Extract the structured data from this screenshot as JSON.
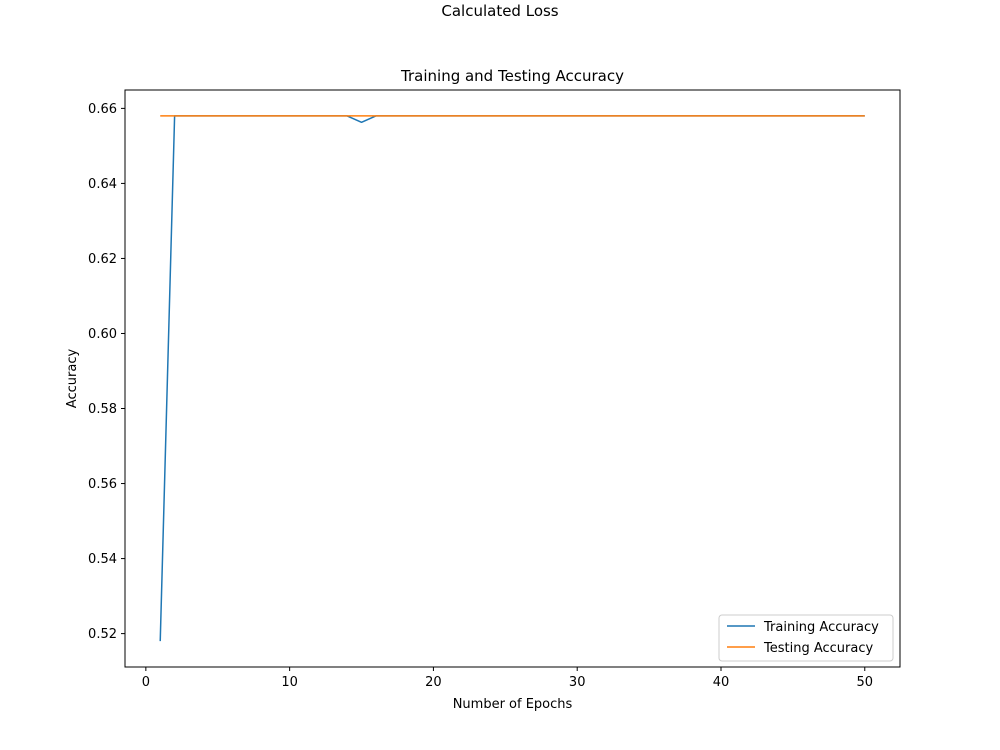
{
  "figure": {
    "suptitle": "Calculated Loss"
  },
  "chart_data": {
    "type": "line",
    "title": "Training and Testing Accuracy",
    "xlabel": "Number of Epochs",
    "ylabel": "Accuracy",
    "xlim": [
      -1.45,
      52.45
    ],
    "ylim": [
      0.5111,
      0.6649
    ],
    "xticks": [
      0,
      10,
      20,
      30,
      40,
      50
    ],
    "yticks": [
      0.52,
      0.54,
      0.56,
      0.58,
      0.6,
      0.62,
      0.64,
      0.66
    ],
    "ytick_labels": [
      "0.52",
      "0.54",
      "0.56",
      "0.58",
      "0.60",
      "0.62",
      "0.64",
      "0.66"
    ],
    "grid": false,
    "legend_position": "lower-right",
    "x": [
      1,
      2,
      3,
      4,
      5,
      6,
      7,
      8,
      9,
      10,
      11,
      12,
      13,
      14,
      15,
      16,
      17,
      18,
      19,
      20,
      21,
      22,
      23,
      24,
      25,
      26,
      27,
      28,
      29,
      30,
      31,
      32,
      33,
      34,
      35,
      36,
      37,
      38,
      39,
      40,
      41,
      42,
      43,
      44,
      45,
      46,
      47,
      48,
      49,
      50
    ],
    "series": [
      {
        "name": "Training Accuracy",
        "color": "#1f77b4",
        "values": [
          0.518,
          0.658,
          0.658,
          0.658,
          0.658,
          0.658,
          0.658,
          0.658,
          0.658,
          0.658,
          0.658,
          0.658,
          0.658,
          0.658,
          0.6563,
          0.658,
          0.658,
          0.658,
          0.658,
          0.658,
          0.658,
          0.658,
          0.658,
          0.658,
          0.658,
          0.658,
          0.658,
          0.658,
          0.658,
          0.658,
          0.658,
          0.658,
          0.658,
          0.658,
          0.658,
          0.658,
          0.658,
          0.658,
          0.658,
          0.658,
          0.658,
          0.658,
          0.658,
          0.658,
          0.658,
          0.658,
          0.658,
          0.658,
          0.658,
          0.658
        ]
      },
      {
        "name": "Testing Accuracy",
        "color": "#ff7f0e",
        "values": [
          0.658,
          0.658,
          0.658,
          0.658,
          0.658,
          0.658,
          0.658,
          0.658,
          0.658,
          0.658,
          0.658,
          0.658,
          0.658,
          0.658,
          0.658,
          0.658,
          0.658,
          0.658,
          0.658,
          0.658,
          0.658,
          0.658,
          0.658,
          0.658,
          0.658,
          0.658,
          0.658,
          0.658,
          0.658,
          0.658,
          0.658,
          0.658,
          0.658,
          0.658,
          0.658,
          0.658,
          0.658,
          0.658,
          0.658,
          0.658,
          0.658,
          0.658,
          0.658,
          0.658,
          0.658,
          0.658,
          0.658,
          0.658,
          0.658,
          0.658
        ]
      }
    ]
  }
}
